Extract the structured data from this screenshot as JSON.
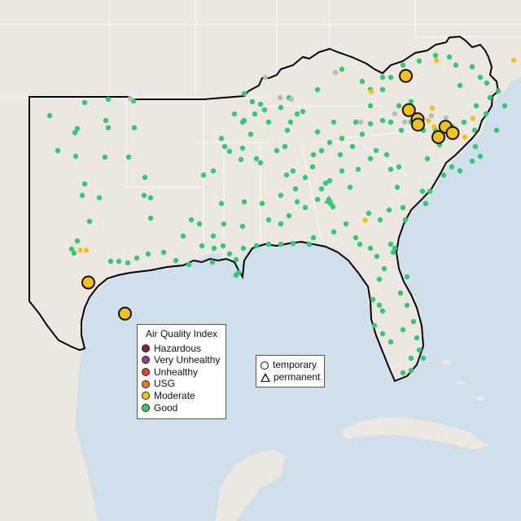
{
  "legend": {
    "title": "Air Quality Index",
    "categories": [
      {
        "label": "Hazardous",
        "color": "#7e2a2a"
      },
      {
        "label": "Very Unhealthy",
        "color": "#8f3f97"
      },
      {
        "label": "Unhealthy",
        "color": "#e8412f"
      },
      {
        "label": "USG",
        "color": "#e8771f"
      },
      {
        "label": "Moderate",
        "color": "#f5c211"
      },
      {
        "label": "Good",
        "color": "#2ecc71"
      }
    ]
  },
  "type_legend": {
    "temporary": "temporary",
    "permanent": "permanent"
  },
  "colors": {
    "ocean": "#cfe0ec",
    "land": "#ece7e0",
    "border": "#000000",
    "good": "#2ecc71",
    "moderate": "#f5c211",
    "no_data": "#bbbbbb"
  },
  "map_data": {
    "region": "Southeastern United States",
    "monitors_moderate_large": [
      {
        "lon": -84.5,
        "lat": 38.05
      },
      {
        "lon": -83.92,
        "lat": 35.96
      },
      {
        "lon": -83.9,
        "lat": 35.7
      },
      {
        "lon": -84.35,
        "lat": 36.4
      },
      {
        "lon": -82.55,
        "lat": 35.6
      },
      {
        "lon": -82.2,
        "lat": 35.3
      },
      {
        "lon": -82.9,
        "lat": 35.1
      },
      {
        "lon": -100.1,
        "lat": 28.1
      },
      {
        "lon": -98.3,
        "lat": 26.6
      }
    ],
    "monitors_moderate_small": [
      {
        "lon": -83.0,
        "lat": 38.8
      },
      {
        "lon": -86.2,
        "lat": 37.3
      },
      {
        "lon": -83.2,
        "lat": 36.5
      },
      {
        "lon": -81.2,
        "lat": 36.0
      },
      {
        "lon": -83.4,
        "lat": 35.9
      },
      {
        "lon": -83.1,
        "lat": 35.6
      },
      {
        "lon": -81.6,
        "lat": 35.1
      },
      {
        "lon": -79.2,
        "lat": 38.8
      },
      {
        "lon": -86.5,
        "lat": 31.1
      },
      {
        "lon": -100.5,
        "lat": 29.65
      },
      {
        "lon": -100.2,
        "lat": 29.65
      }
    ]
  }
}
